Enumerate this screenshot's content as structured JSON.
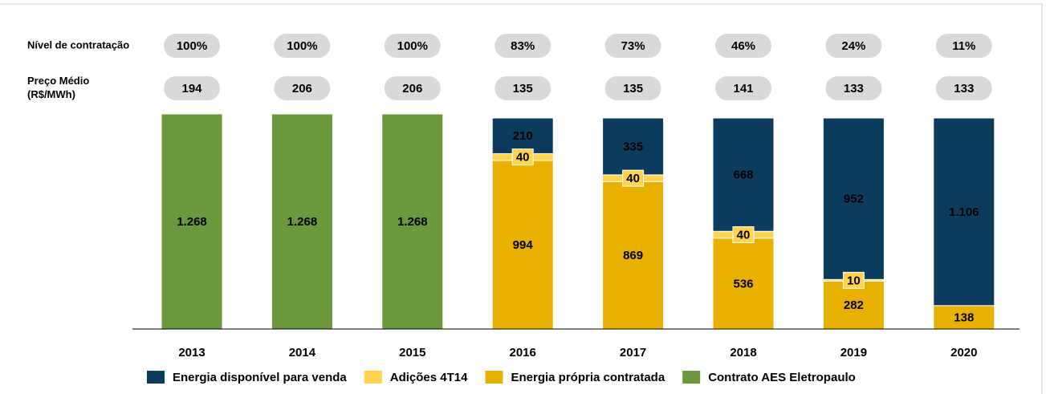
{
  "chart_data": {
    "type": "stacked_bar",
    "categories": [
      "2013",
      "2014",
      "2015",
      "2016",
      "2017",
      "2018",
      "2019",
      "2020"
    ],
    "series": [
      {
        "name": "Energia disponível para venda",
        "color": "#0b3c5d",
        "values": [
          null,
          null,
          null,
          210,
          335,
          668,
          952,
          1106
        ],
        "value_labels": [
          null,
          null,
          null,
          "210",
          "335",
          "668",
          "952",
          "1.106"
        ]
      },
      {
        "name": "Adições 4T14",
        "color": "#ffd34e",
        "values": [
          null,
          null,
          null,
          40,
          40,
          40,
          10,
          null
        ],
        "value_labels": [
          null,
          null,
          null,
          "40",
          "40",
          "40",
          "10",
          null
        ]
      },
      {
        "name": "Energia própria contratada",
        "color": "#e8b000",
        "values": [
          null,
          null,
          null,
          994,
          869,
          536,
          282,
          138
        ],
        "value_labels": [
          null,
          null,
          null,
          "994",
          "869",
          "536",
          "282",
          "138"
        ]
      },
      {
        "name": "Contrato AES Eletropaulo",
        "color": "#6b983d",
        "values": [
          1268,
          1268,
          1268,
          null,
          null,
          null,
          null,
          null
        ],
        "value_labels": [
          "1.268",
          "1.268",
          "1.268",
          null,
          null,
          null,
          null,
          null
        ]
      }
    ],
    "rows": [
      {
        "label_lines": [
          "Nível de contratação"
        ],
        "values": [
          100,
          100,
          100,
          83,
          73,
          46,
          24,
          11
        ],
        "value_labels": [
          "100%",
          "100%",
          "100%",
          "83%",
          "73%",
          "46%",
          "24%",
          "11%"
        ]
      },
      {
        "label_lines": [
          "Preço Médio",
          "(R$/MWh)"
        ],
        "values": [
          194,
          206,
          206,
          135,
          135,
          141,
          133,
          133
        ]
      }
    ]
  }
}
